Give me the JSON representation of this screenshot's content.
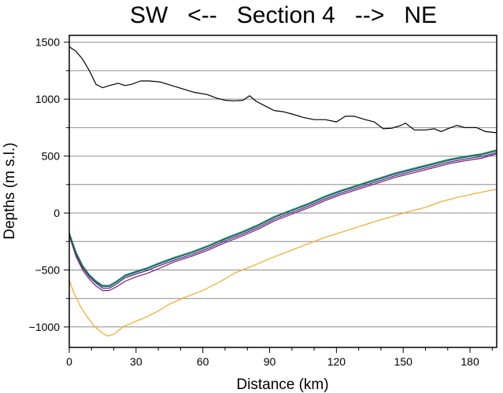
{
  "chart_data": {
    "type": "line",
    "title": "SW   <--   Section 4   -->   NE",
    "xlabel": "Distance (km)",
    "ylabel": "Depths (m s.l.)",
    "xlim": [
      0,
      192
    ],
    "ylim": [
      -1180,
      1560
    ],
    "xticks": [
      0,
      30,
      60,
      90,
      120,
      150,
      180
    ],
    "xtick_labels": [
      "0",
      "30",
      "60",
      "90",
      "120",
      "150",
      "180"
    ],
    "yticks": [
      -1000,
      -500,
      0,
      500,
      1000,
      1500
    ],
    "ytick_labels": [
      "−1000",
      "−500",
      "0",
      "500",
      "1000",
      "1500"
    ],
    "gridlines_y": [
      -1000,
      -750,
      -500,
      -250,
      0,
      250,
      500,
      750,
      1000,
      1250,
      1500
    ],
    "grid": "horizontal",
    "series": [
      {
        "color": "#000000",
        "width": 1.2,
        "points": [
          [
            0,
            1460
          ],
          [
            3,
            1420
          ],
          [
            6,
            1350
          ],
          [
            9,
            1250
          ],
          [
            12,
            1130
          ],
          [
            15,
            1100
          ],
          [
            18,
            1120
          ],
          [
            22,
            1140
          ],
          [
            25,
            1120
          ],
          [
            28,
            1130
          ],
          [
            32,
            1160
          ],
          [
            36,
            1160
          ],
          [
            41,
            1150
          ],
          [
            46,
            1120
          ],
          [
            51,
            1090
          ],
          [
            56,
            1060
          ],
          [
            62,
            1040
          ],
          [
            66,
            1010
          ],
          [
            70,
            990
          ],
          [
            74,
            985
          ],
          [
            78,
            990
          ],
          [
            81,
            1030
          ],
          [
            84,
            980
          ],
          [
            88,
            940
          ],
          [
            92,
            900
          ],
          [
            96,
            890
          ],
          [
            100,
            870
          ],
          [
            105,
            840
          ],
          [
            110,
            820
          ],
          [
            115,
            820
          ],
          [
            120,
            800
          ],
          [
            124,
            850
          ],
          [
            128,
            850
          ],
          [
            133,
            820
          ],
          [
            137,
            800
          ],
          [
            141,
            740
          ],
          [
            145,
            745
          ],
          [
            149,
            770
          ],
          [
            151,
            790
          ],
          [
            155,
            730
          ],
          [
            160,
            730
          ],
          [
            164,
            740
          ],
          [
            167,
            715
          ],
          [
            170,
            740
          ],
          [
            174,
            770
          ],
          [
            178,
            750
          ],
          [
            183,
            750
          ],
          [
            187,
            715
          ],
          [
            192,
            705
          ]
        ]
      },
      {
        "color": "#f5a623",
        "width": 1.2,
        "points": [
          [
            0,
            -590
          ],
          [
            2,
            -700
          ],
          [
            5,
            -820
          ],
          [
            8,
            -910
          ],
          [
            11,
            -990
          ],
          [
            14,
            -1040
          ],
          [
            17,
            -1080
          ],
          [
            20,
            -1065
          ],
          [
            24,
            -1000
          ],
          [
            30,
            -950
          ],
          [
            35,
            -910
          ],
          [
            40,
            -860
          ],
          [
            45,
            -800
          ],
          [
            52,
            -740
          ],
          [
            60,
            -680
          ],
          [
            68,
            -600
          ],
          [
            75,
            -520
          ],
          [
            83,
            -460
          ],
          [
            90,
            -400
          ],
          [
            98,
            -340
          ],
          [
            106,
            -280
          ],
          [
            114,
            -220
          ],
          [
            122,
            -170
          ],
          [
            130,
            -120
          ],
          [
            138,
            -70
          ],
          [
            145,
            -30
          ],
          [
            152,
            10
          ],
          [
            160,
            50
          ],
          [
            167,
            100
          ],
          [
            175,
            140
          ],
          [
            182,
            170
          ],
          [
            192,
            210
          ]
        ]
      },
      {
        "color": "#7a1a6e",
        "width": 1.2,
        "points": [
          [
            0,
            -200
          ],
          [
            3,
            -380
          ],
          [
            6,
            -500
          ],
          [
            9,
            -580
          ],
          [
            12,
            -640
          ],
          [
            15,
            -680
          ],
          [
            18,
            -680
          ],
          [
            21,
            -650
          ],
          [
            25,
            -600
          ],
          [
            30,
            -560
          ],
          [
            35,
            -530
          ],
          [
            40,
            -490
          ],
          [
            47,
            -430
          ],
          [
            55,
            -380
          ],
          [
            63,
            -320
          ],
          [
            70,
            -260
          ],
          [
            78,
            -200
          ],
          [
            85,
            -140
          ],
          [
            92,
            -70
          ],
          [
            100,
            -10
          ],
          [
            108,
            50
          ],
          [
            115,
            110
          ],
          [
            122,
            160
          ],
          [
            130,
            210
          ],
          [
            138,
            260
          ],
          [
            146,
            310
          ],
          [
            154,
            350
          ],
          [
            162,
            390
          ],
          [
            170,
            430
          ],
          [
            178,
            460
          ],
          [
            185,
            480
          ],
          [
            192,
            520
          ]
        ]
      },
      {
        "color": "#3f1f8f",
        "width": 1.2,
        "points": [
          [
            0,
            -190
          ],
          [
            3,
            -360
          ],
          [
            6,
            -480
          ],
          [
            9,
            -560
          ],
          [
            12,
            -615
          ],
          [
            15,
            -660
          ],
          [
            18,
            -660
          ],
          [
            21,
            -625
          ],
          [
            25,
            -570
          ],
          [
            30,
            -535
          ],
          [
            35,
            -505
          ],
          [
            40,
            -465
          ],
          [
            47,
            -415
          ],
          [
            55,
            -365
          ],
          [
            63,
            -305
          ],
          [
            70,
            -245
          ],
          [
            78,
            -185
          ],
          [
            85,
            -125
          ],
          [
            92,
            -55
          ],
          [
            100,
            5
          ],
          [
            108,
            65
          ],
          [
            115,
            125
          ],
          [
            122,
            175
          ],
          [
            130,
            225
          ],
          [
            138,
            275
          ],
          [
            146,
            325
          ],
          [
            154,
            365
          ],
          [
            162,
            405
          ],
          [
            170,
            445
          ],
          [
            178,
            475
          ],
          [
            185,
            495
          ],
          [
            192,
            530
          ]
        ]
      },
      {
        "color": "#1d5b7a",
        "width": 1.2,
        "points": [
          [
            0,
            -180
          ],
          [
            3,
            -350
          ],
          [
            6,
            -470
          ],
          [
            9,
            -550
          ],
          [
            12,
            -605
          ],
          [
            15,
            -645
          ],
          [
            18,
            -645
          ],
          [
            21,
            -610
          ],
          [
            25,
            -555
          ],
          [
            30,
            -520
          ],
          [
            35,
            -490
          ],
          [
            40,
            -450
          ],
          [
            47,
            -400
          ],
          [
            55,
            -350
          ],
          [
            63,
            -290
          ],
          [
            70,
            -230
          ],
          [
            78,
            -170
          ],
          [
            85,
            -110
          ],
          [
            92,
            -40
          ],
          [
            100,
            20
          ],
          [
            108,
            80
          ],
          [
            115,
            140
          ],
          [
            122,
            190
          ],
          [
            130,
            240
          ],
          [
            138,
            290
          ],
          [
            146,
            340
          ],
          [
            154,
            380
          ],
          [
            162,
            420
          ],
          [
            170,
            460
          ],
          [
            178,
            490
          ],
          [
            185,
            510
          ],
          [
            192,
            545
          ]
        ]
      },
      {
        "color": "#3a9a8a",
        "width": 1.2,
        "points": [
          [
            0,
            -170
          ],
          [
            3,
            -340
          ],
          [
            6,
            -460
          ],
          [
            9,
            -540
          ],
          [
            12,
            -595
          ],
          [
            15,
            -635
          ],
          [
            18,
            -635
          ],
          [
            21,
            -600
          ],
          [
            25,
            -545
          ],
          [
            30,
            -510
          ],
          [
            35,
            -480
          ],
          [
            40,
            -440
          ],
          [
            47,
            -390
          ],
          [
            55,
            -340
          ],
          [
            63,
            -280
          ],
          [
            70,
            -220
          ],
          [
            78,
            -160
          ],
          [
            85,
            -100
          ],
          [
            92,
            -30
          ],
          [
            100,
            30
          ],
          [
            108,
            90
          ],
          [
            115,
            150
          ],
          [
            122,
            200
          ],
          [
            130,
            250
          ],
          [
            138,
            300
          ],
          [
            146,
            350
          ],
          [
            154,
            390
          ],
          [
            162,
            430
          ],
          [
            170,
            470
          ],
          [
            178,
            500
          ],
          [
            185,
            520
          ],
          [
            192,
            555
          ]
        ]
      },
      {
        "color": "#1f7a3f",
        "width": 1.2,
        "points": [
          [
            0,
            -175
          ],
          [
            3,
            -345
          ],
          [
            6,
            -465
          ],
          [
            9,
            -545
          ],
          [
            12,
            -600
          ],
          [
            15,
            -640
          ],
          [
            18,
            -640
          ],
          [
            21,
            -605
          ],
          [
            25,
            -550
          ],
          [
            30,
            -515
          ],
          [
            35,
            -485
          ],
          [
            40,
            -445
          ],
          [
            47,
            -395
          ],
          [
            55,
            -345
          ],
          [
            63,
            -285
          ],
          [
            70,
            -225
          ],
          [
            78,
            -165
          ],
          [
            85,
            -105
          ],
          [
            92,
            -35
          ],
          [
            100,
            25
          ],
          [
            108,
            85
          ],
          [
            115,
            145
          ],
          [
            122,
            195
          ],
          [
            130,
            245
          ],
          [
            138,
            295
          ],
          [
            146,
            345
          ],
          [
            154,
            385
          ],
          [
            162,
            425
          ],
          [
            170,
            465
          ],
          [
            178,
            495
          ],
          [
            185,
            515
          ],
          [
            192,
            550
          ]
        ]
      }
    ]
  }
}
